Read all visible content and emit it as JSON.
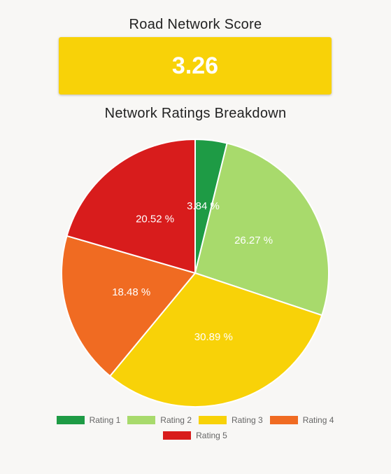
{
  "score": {
    "title": "Road Network Score",
    "value": "3.26",
    "box_color": "#f8d208"
  },
  "breakdown": {
    "title": "Network Ratings Breakdown"
  },
  "chart_data": {
    "type": "pie",
    "title": "Network Ratings Breakdown",
    "categories": [
      "Rating 1",
      "Rating 2",
      "Rating 3",
      "Rating 4",
      "Rating 5"
    ],
    "values": [
      3.84,
      26.27,
      30.89,
      18.48,
      20.52
    ],
    "labels": [
      "3.84 %",
      "26.27 %",
      "30.89 %",
      "18.48 %",
      "20.52 %"
    ],
    "colors": [
      "#1e9b45",
      "#a8da6c",
      "#f8d208",
      "#f06b22",
      "#d81c1c"
    ],
    "legend": "bottom",
    "start": "top",
    "direction": "clockwise"
  }
}
